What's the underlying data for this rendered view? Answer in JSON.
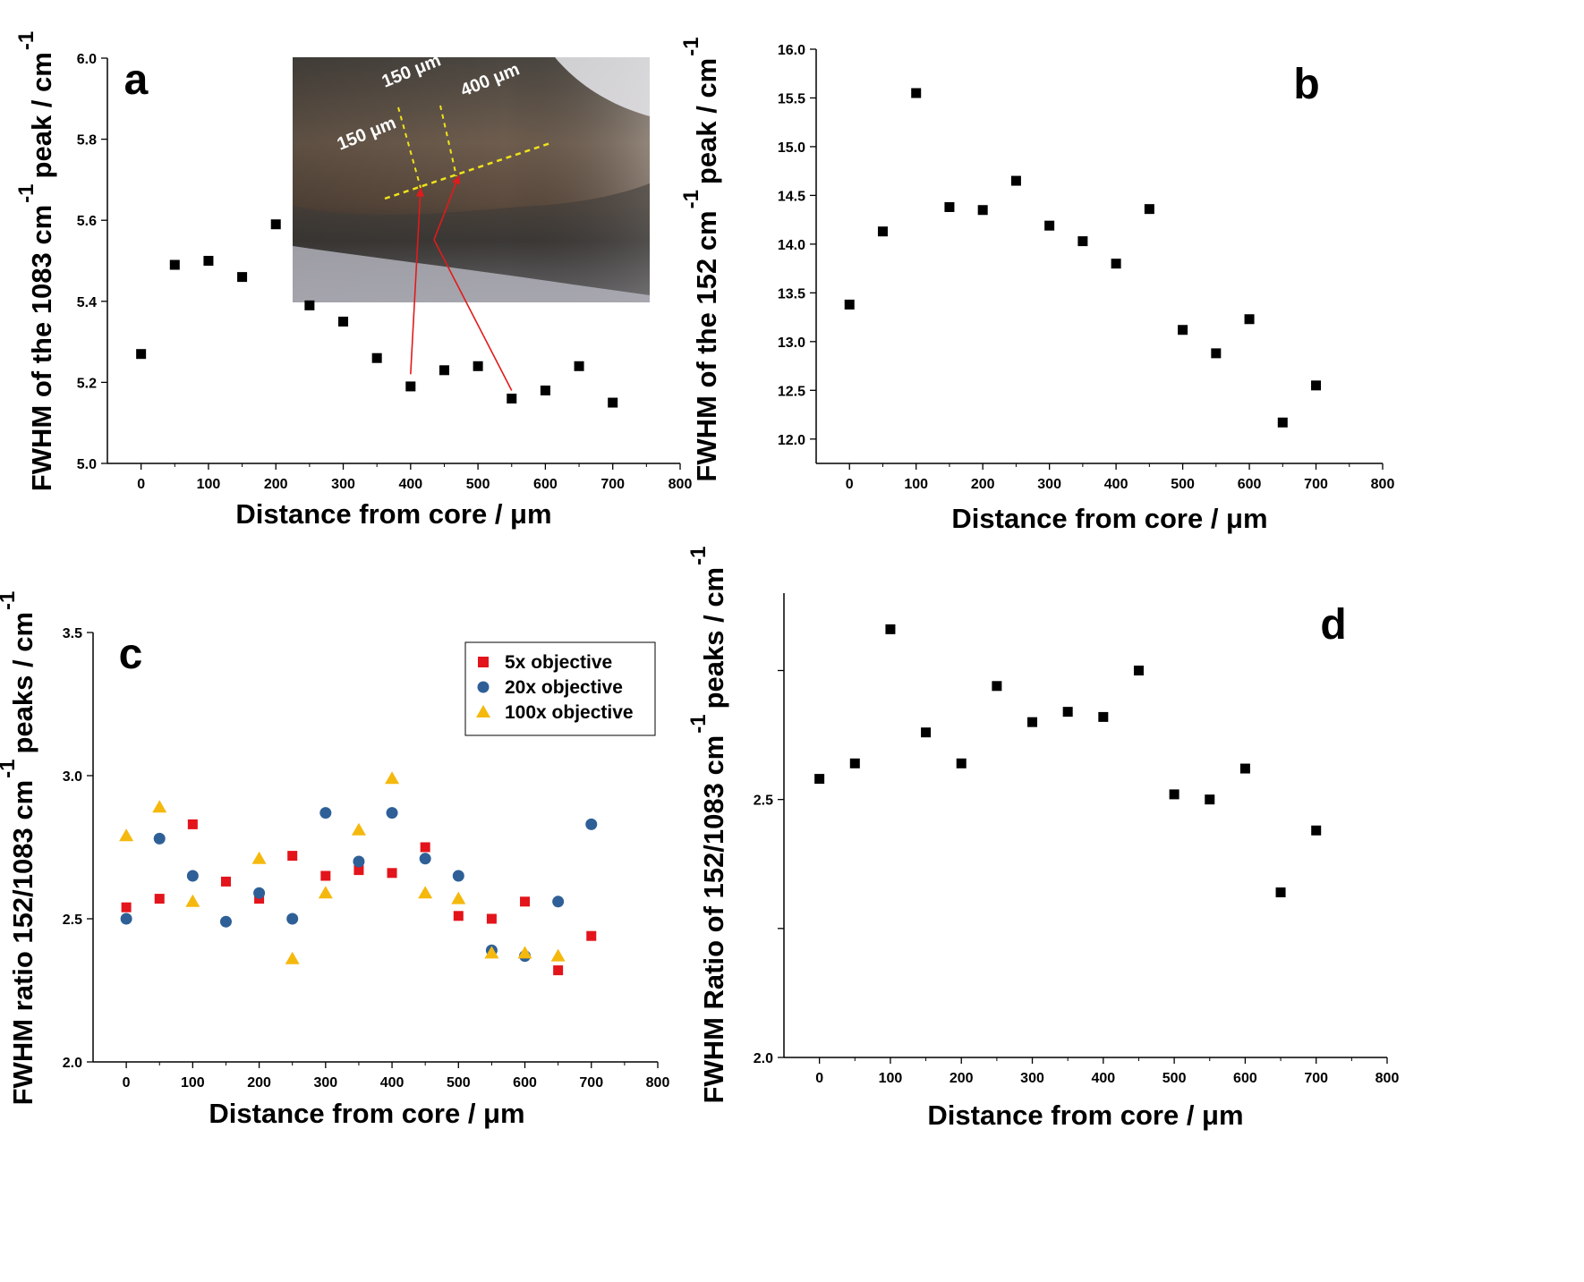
{
  "chart_data": [
    {
      "panel_label": "a",
      "type": "scatter",
      "xlabel": "Distance from core / μm",
      "ylabel": "FWHM of the 1083 cm  peak / cm",
      "ylabel_parts": [
        "FWHM of the 1083 cm",
        "-1",
        "peak / cm",
        "-1"
      ],
      "xlim": [
        -50,
        800
      ],
      "ylim": [
        5.0,
        6.0
      ],
      "xticks": [
        0,
        100,
        200,
        300,
        400,
        500,
        600,
        700,
        800
      ],
      "yticks": [
        5.0,
        5.2,
        5.4,
        5.6,
        5.8,
        6.0
      ],
      "ytick_labels": [
        "5.0",
        "5.2",
        "5.4",
        "5.6",
        "5.8",
        "6.0"
      ],
      "grid": false,
      "series": [
        {
          "marker": "square",
          "color": "#000000",
          "x": [
            0,
            50,
            100,
            150,
            200,
            250,
            300,
            350,
            400,
            450,
            500,
            550,
            600,
            650,
            700
          ],
          "y": [
            5.27,
            5.49,
            5.5,
            5.46,
            5.59,
            5.39,
            5.35,
            5.26,
            5.19,
            5.23,
            5.24,
            5.16,
            5.18,
            5.24,
            5.15
          ]
        }
      ],
      "inset": {
        "description_labels": [
          "150 μm",
          "150 μm",
          "400 μm"
        ]
      }
    },
    {
      "panel_label": "b",
      "type": "scatter",
      "xlabel": "Distance from core / μm",
      "ylabel": "FWHM of the 152 cm  peak / cm",
      "ylabel_parts": [
        "FWHM of the 152 cm",
        "-1",
        "peak / cm",
        "-1"
      ],
      "xlim": [
        -50,
        800
      ],
      "ylim": [
        11.75,
        16.0
      ],
      "xticks": [
        0,
        100,
        200,
        300,
        400,
        500,
        600,
        700,
        800
      ],
      "yticks": [
        12.0,
        12.5,
        13.0,
        13.5,
        14.0,
        14.5,
        15.0,
        15.5,
        16.0
      ],
      "ytick_labels": [
        "12.0",
        "12.5",
        "13.0",
        "13.5",
        "14.0",
        "14.5",
        "15.0",
        "15.5",
        "16.0"
      ],
      "grid": false,
      "series": [
        {
          "marker": "square",
          "color": "#000000",
          "x": [
            0,
            50,
            100,
            150,
            200,
            250,
            300,
            350,
            400,
            450,
            500,
            550,
            600,
            650,
            700
          ],
          "y": [
            13.38,
            14.13,
            15.55,
            14.38,
            14.35,
            14.65,
            14.19,
            14.03,
            13.8,
            14.36,
            13.12,
            12.88,
            13.23,
            12.17,
            12.55
          ]
        }
      ]
    },
    {
      "panel_label": "c",
      "type": "scatter",
      "xlabel": "Distance from core / μm",
      "ylabel": "FWHM ratio 152/1083 cm  peaks / cm",
      "ylabel_parts": [
        "FWHM ratio 152/1083 cm",
        "-1",
        "peaks / cm",
        "-1"
      ],
      "xlim": [
        -50,
        800
      ],
      "ylim": [
        2.0,
        3.5
      ],
      "xticks": [
        0,
        100,
        200,
        300,
        400,
        500,
        600,
        700,
        800
      ],
      "yticks": [
        2.0,
        2.5,
        3.0,
        3.5
      ],
      "ytick_labels": [
        "2.0",
        "2.5",
        "3.0",
        "3.5"
      ],
      "grid": false,
      "legend_position": "top-right",
      "series": [
        {
          "name": "5x objective",
          "marker": "square",
          "color": "#e3141b",
          "x": [
            0,
            50,
            100,
            150,
            200,
            250,
            300,
            350,
            400,
            450,
            500,
            550,
            600,
            650,
            700
          ],
          "y": [
            2.54,
            2.57,
            2.83,
            2.63,
            2.57,
            2.72,
            2.65,
            2.67,
            2.66,
            2.75,
            2.51,
            2.5,
            2.56,
            2.32,
            2.44
          ]
        },
        {
          "name": "20x objective",
          "marker": "circle",
          "color": "#2e6097",
          "x": [
            0,
            50,
            100,
            150,
            200,
            250,
            300,
            350,
            400,
            450,
            500,
            550,
            600,
            650,
            700
          ],
          "y": [
            2.5,
            2.78,
            2.65,
            2.49,
            2.59,
            2.5,
            2.87,
            2.7,
            2.87,
            2.71,
            2.65,
            2.39,
            2.37,
            2.56,
            2.83
          ]
        },
        {
          "name": "100x objective",
          "marker": "triangle",
          "color": "#f5b80d",
          "x": [
            0,
            50,
            100,
            200,
            250,
            300,
            350,
            400,
            450,
            500,
            550,
            600,
            650
          ],
          "y": [
            2.79,
            2.89,
            2.56,
            2.71,
            2.36,
            2.59,
            2.81,
            2.99,
            2.59,
            2.57,
            2.38,
            2.38,
            2.37
          ]
        }
      ]
    },
    {
      "panel_label": "d",
      "type": "scatter",
      "xlabel": "Distance from core / μm",
      "ylabel": "FWHM Ratio of 152/1083 cm  peaks / cm",
      "ylabel_parts": [
        "FWHM Ratio of 152/1083 cm",
        "-1",
        "peaks / cm",
        "-1"
      ],
      "xlim": [
        -50,
        800
      ],
      "ylim": [
        2.0,
        2.9
      ],
      "xticks": [
        0,
        100,
        200,
        300,
        400,
        500,
        600,
        700,
        800
      ],
      "yticks": [
        2.0,
        2.25,
        2.5,
        2.75
      ],
      "ytick_labels": [
        "2.0",
        "",
        "2.5",
        ""
      ],
      "grid": false,
      "series": [
        {
          "marker": "square",
          "color": "#000000",
          "x": [
            0,
            50,
            100,
            150,
            200,
            250,
            300,
            350,
            400,
            450,
            500,
            550,
            600,
            650,
            700
          ],
          "y": [
            2.54,
            2.57,
            2.83,
            2.63,
            2.57,
            2.72,
            2.65,
            2.67,
            2.66,
            2.75,
            2.51,
            2.5,
            2.56,
            2.32,
            2.44
          ]
        }
      ]
    }
  ]
}
